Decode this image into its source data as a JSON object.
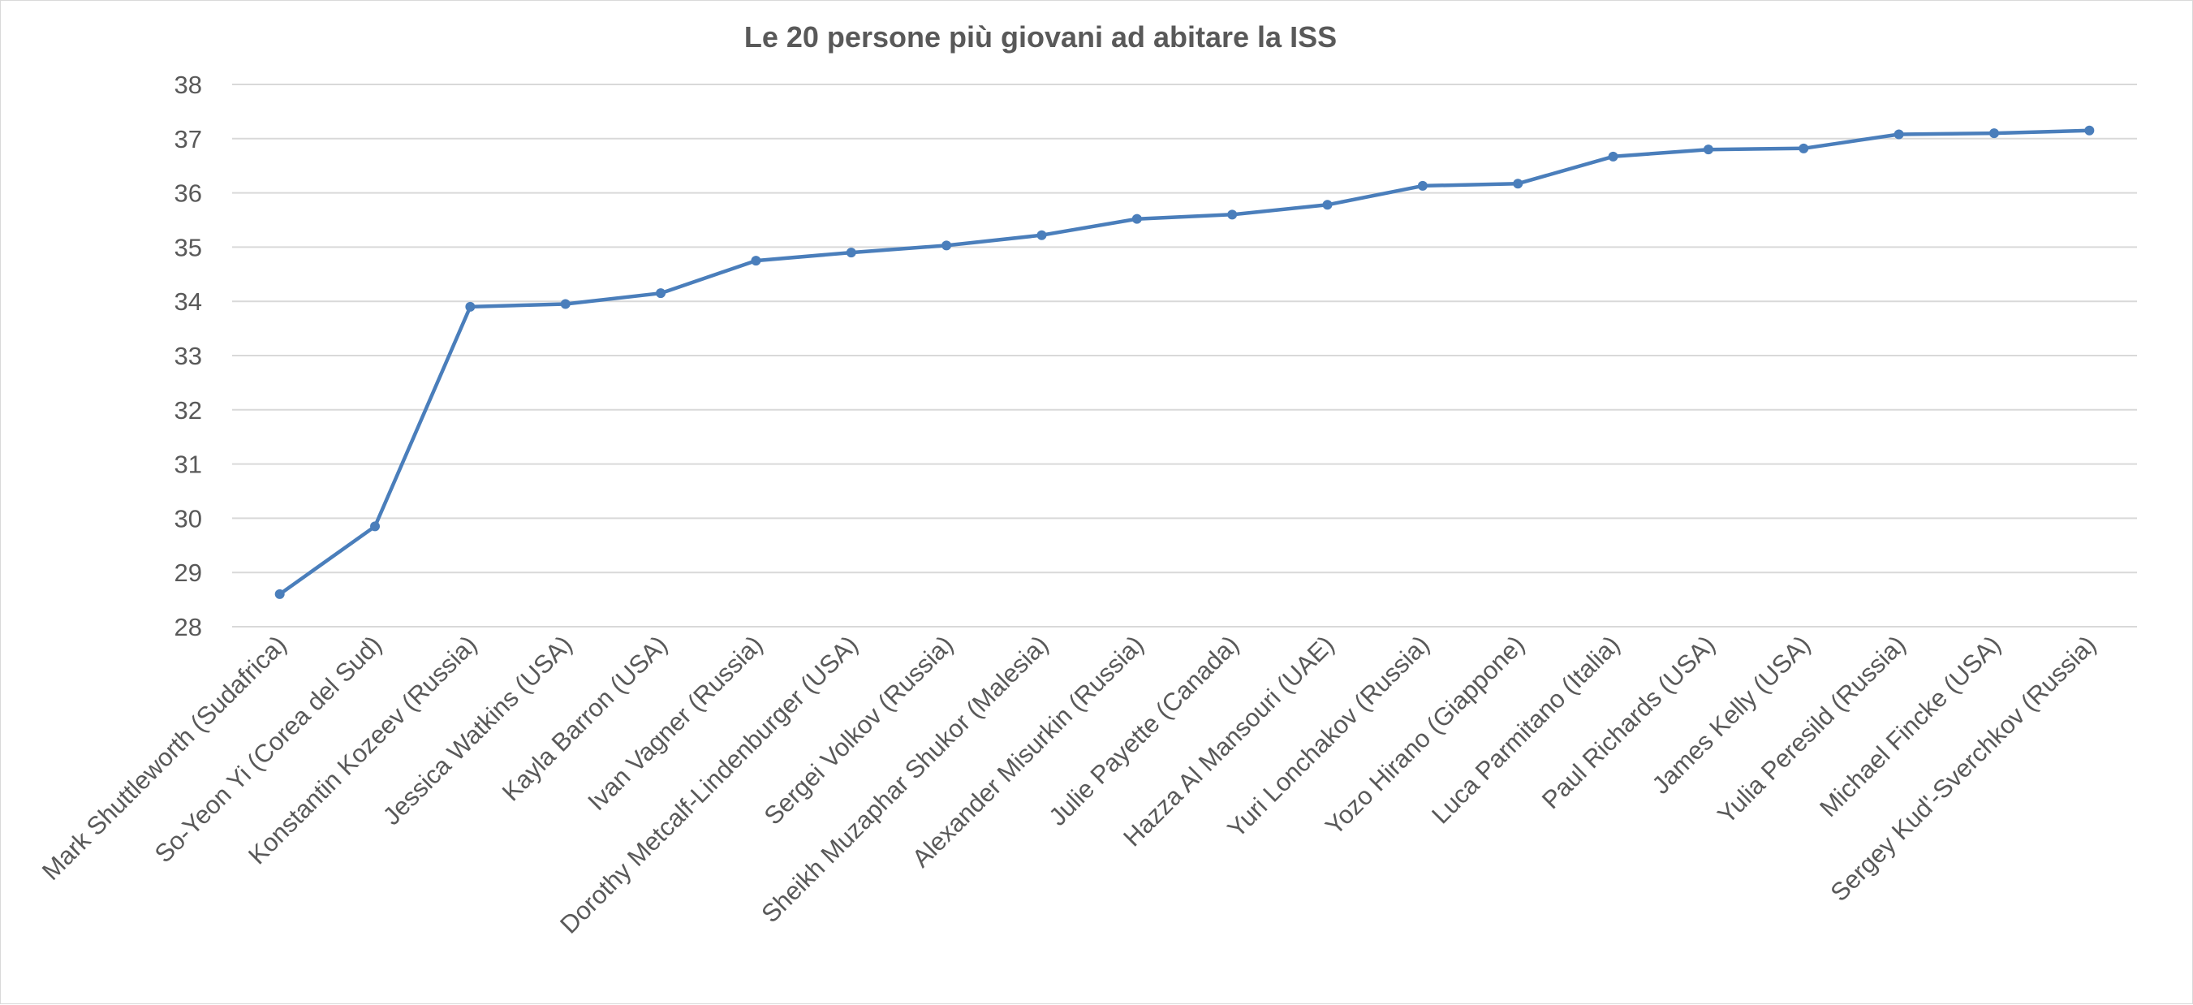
{
  "chart_data": {
    "type": "line",
    "title": "Le 20 persone più giovani ad abitare la ISS",
    "xlabel": "",
    "ylabel": "",
    "ylim": [
      28,
      38
    ],
    "yticks": [
      28,
      29,
      30,
      31,
      32,
      33,
      34,
      35,
      36,
      37,
      38
    ],
    "grid": true,
    "legend": "none",
    "categories": [
      "Mark Shuttleworth (Sudafrica)",
      "So-Yeon Yi (Corea del Sud)",
      "Konstantin Kozeev (Russia)",
      "Jessica Watkins (USA)",
      "Kayla Barron (USA)",
      "Ivan Vagner (Russia)",
      "Dorothy Metcalf-Lindenburger (USA)",
      "Sergei Volkov (Russia)",
      "Sheikh Muzaphar Shukor (Malesia)",
      "Alexander Misurkin (Russia)",
      "Julie Payette (Canada)",
      "Hazza Al Mansouri (UAE)",
      "Yuri Lonchakov (Russia)",
      "Yozo Hirano (Giappone)",
      "Luca Parmitano (Italia)",
      "Paul Richards (USA)",
      "James Kelly (USA)",
      "Yulia Peresild (Russia)",
      "Michael Fincke (USA)",
      "Sergey Kud'-Sverchkov (Russia)"
    ],
    "series": [
      {
        "color": "#4a7ebb",
        "values": [
          28.6,
          29.85,
          33.9,
          33.95,
          34.15,
          34.75,
          34.9,
          35.03,
          35.22,
          35.52,
          35.6,
          35.78,
          36.13,
          36.17,
          36.67,
          36.8,
          36.82,
          37.08,
          37.1,
          37.15
        ]
      }
    ]
  }
}
